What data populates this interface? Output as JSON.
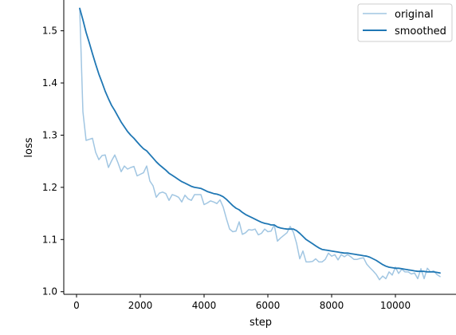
{
  "chart_data": {
    "type": "line",
    "title": "",
    "xlabel": "step",
    "ylabel": "loss",
    "xlim": [
      -400,
      11900
    ],
    "ylim": [
      0.995,
      1.559
    ],
    "x_ticks": [
      0,
      2000,
      4000,
      6000,
      8000,
      10000
    ],
    "x_tick_labels": [
      "0",
      "2000",
      "4000",
      "6000",
      "8000",
      "10000"
    ],
    "y_ticks": [
      1.0,
      1.1,
      1.2,
      1.3,
      1.4,
      1.5
    ],
    "y_tick_labels": [
      "1.0",
      "1.1",
      "1.2",
      "1.3",
      "1.4",
      "1.5"
    ],
    "grid": false,
    "legend": {
      "position": "top-right",
      "entries": [
        "original",
        "smoothed"
      ]
    },
    "series": [
      {
        "name": "original",
        "color": "#a1c6e2",
        "x": [
          100,
          200,
          300,
          400,
          500,
          600,
          700,
          800,
          900,
          1000,
          1100,
          1200,
          1300,
          1400,
          1500,
          1600,
          1700,
          1800,
          1900,
          2000,
          2100,
          2200,
          2300,
          2400,
          2500,
          2600,
          2700,
          2800,
          2900,
          3000,
          3100,
          3200,
          3300,
          3400,
          3500,
          3600,
          3700,
          3800,
          3900,
          4000,
          4100,
          4200,
          4300,
          4400,
          4500,
          4600,
          4700,
          4800,
          4900,
          5000,
          5100,
          5200,
          5300,
          5400,
          5500,
          5600,
          5700,
          5800,
          5900,
          6000,
          6100,
          6200,
          6300,
          6400,
          6500,
          6600,
          6700,
          6800,
          6900,
          7000,
          7100,
          7200,
          7300,
          7400,
          7500,
          7600,
          7700,
          7800,
          7900,
          8000,
          8100,
          8200,
          8300,
          8400,
          8500,
          8600,
          8700,
          8800,
          8900,
          9000,
          9100,
          9200,
          9300,
          9400,
          9500,
          9600,
          9700,
          9800,
          9900,
          10000,
          10100,
          10200,
          10300,
          10400,
          10500,
          10600,
          10700,
          10800,
          10900,
          11000,
          11100,
          11200,
          11300,
          11400
        ],
        "y": [
          1.543,
          1.345,
          1.29,
          1.292,
          1.294,
          1.267,
          1.253,
          1.261,
          1.262,
          1.238,
          1.251,
          1.262,
          1.247,
          1.23,
          1.241,
          1.235,
          1.238,
          1.24,
          1.222,
          1.225,
          1.228,
          1.241,
          1.212,
          1.203,
          1.181,
          1.189,
          1.191,
          1.188,
          1.175,
          1.186,
          1.184,
          1.181,
          1.172,
          1.185,
          1.178,
          1.175,
          1.186,
          1.186,
          1.186,
          1.167,
          1.17,
          1.174,
          1.172,
          1.169,
          1.176,
          1.162,
          1.14,
          1.12,
          1.115,
          1.116,
          1.134,
          1.11,
          1.113,
          1.119,
          1.118,
          1.12,
          1.109,
          1.112,
          1.12,
          1.115,
          1.116,
          1.128,
          1.097,
          1.103,
          1.108,
          1.113,
          1.125,
          1.114,
          1.093,
          1.063,
          1.078,
          1.057,
          1.057,
          1.058,
          1.063,
          1.057,
          1.057,
          1.062,
          1.074,
          1.068,
          1.071,
          1.061,
          1.071,
          1.067,
          1.071,
          1.067,
          1.062,
          1.062,
          1.064,
          1.065,
          1.053,
          1.046,
          1.04,
          1.033,
          1.023,
          1.03,
          1.025,
          1.038,
          1.032,
          1.047,
          1.035,
          1.043,
          1.038,
          1.038,
          1.034,
          1.036,
          1.025,
          1.044,
          1.025,
          1.045,
          1.038,
          1.04,
          1.033,
          1.029
        ]
      },
      {
        "name": "smoothed",
        "color": "#1f77b4",
        "x": [
          100,
          200,
          300,
          400,
          500,
          600,
          700,
          800,
          900,
          1000,
          1100,
          1200,
          1300,
          1400,
          1500,
          1600,
          1700,
          1800,
          1900,
          2000,
          2100,
          2200,
          2300,
          2400,
          2500,
          2600,
          2700,
          2800,
          2900,
          3000,
          3100,
          3200,
          3300,
          3400,
          3500,
          3600,
          3700,
          3800,
          3900,
          4000,
          4100,
          4200,
          4300,
          4400,
          4500,
          4600,
          4700,
          4800,
          4900,
          5000,
          5100,
          5200,
          5300,
          5400,
          5500,
          5600,
          5700,
          5800,
          5900,
          6000,
          6100,
          6200,
          6300,
          6400,
          6500,
          6600,
          6700,
          6800,
          6900,
          7000,
          7100,
          7200,
          7300,
          7400,
          7500,
          7600,
          7700,
          7800,
          7900,
          8000,
          8100,
          8200,
          8300,
          8400,
          8500,
          8600,
          8700,
          8800,
          8900,
          9000,
          9100,
          9200,
          9300,
          9400,
          9500,
          9600,
          9700,
          9800,
          9900,
          10000,
          10100,
          10200,
          10300,
          10400,
          10500,
          10600,
          10700,
          10800,
          10900,
          11000,
          11100,
          11200,
          11300,
          11400
        ],
        "y": [
          1.543,
          1.521,
          1.497,
          1.477,
          1.456,
          1.436,
          1.417,
          1.401,
          1.384,
          1.37,
          1.357,
          1.347,
          1.336,
          1.325,
          1.316,
          1.307,
          1.3,
          1.294,
          1.287,
          1.28,
          1.274,
          1.27,
          1.263,
          1.256,
          1.249,
          1.243,
          1.238,
          1.233,
          1.227,
          1.223,
          1.219,
          1.215,
          1.211,
          1.208,
          1.205,
          1.202,
          1.2,
          1.199,
          1.198,
          1.195,
          1.192,
          1.19,
          1.188,
          1.187,
          1.185,
          1.182,
          1.177,
          1.171,
          1.165,
          1.16,
          1.157,
          1.152,
          1.148,
          1.145,
          1.142,
          1.139,
          1.136,
          1.133,
          1.131,
          1.13,
          1.128,
          1.128,
          1.124,
          1.122,
          1.121,
          1.12,
          1.12,
          1.12,
          1.117,
          1.112,
          1.106,
          1.1,
          1.096,
          1.092,
          1.088,
          1.084,
          1.081,
          1.08,
          1.079,
          1.078,
          1.077,
          1.076,
          1.075,
          1.074,
          1.074,
          1.073,
          1.072,
          1.071,
          1.07,
          1.069,
          1.068,
          1.066,
          1.063,
          1.06,
          1.056,
          1.052,
          1.049,
          1.047,
          1.046,
          1.045,
          1.045,
          1.044,
          1.043,
          1.042,
          1.041,
          1.04,
          1.039,
          1.039,
          1.039,
          1.038,
          1.038,
          1.038,
          1.037,
          1.036
        ]
      }
    ]
  }
}
